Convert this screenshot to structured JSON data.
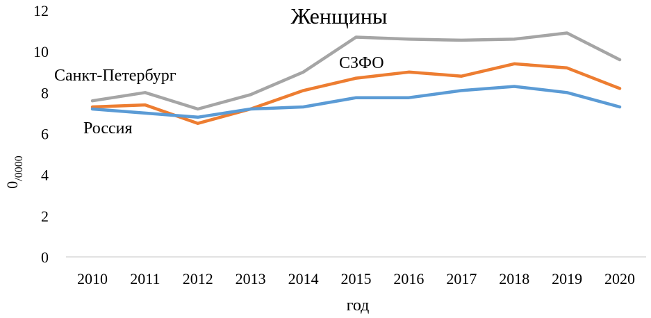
{
  "chart_data": {
    "type": "line",
    "title": "Женщины",
    "xlabel": "год",
    "ylabel_base": "0",
    "ylabel_sub": "/0000",
    "ylim": [
      0,
      12
    ],
    "yticks": [
      0,
      2,
      4,
      6,
      8,
      10,
      12
    ],
    "grid": false,
    "categories": [
      "2010",
      "2011",
      "2012",
      "2013",
      "2014",
      "2015",
      "2016",
      "2017",
      "2018",
      "2019",
      "2020"
    ],
    "series": [
      {
        "name": "Санкт-Петербург",
        "color": "#a5a5a5",
        "values": [
          7.6,
          8.0,
          7.2,
          7.9,
          9.0,
          10.7,
          10.6,
          10.55,
          10.6,
          10.9,
          9.6
        ]
      },
      {
        "name": "СЗФО",
        "color": "#ed7d31",
        "values": [
          7.3,
          7.4,
          6.5,
          7.2,
          8.1,
          8.7,
          9.0,
          8.8,
          9.4,
          9.2,
          8.2
        ]
      },
      {
        "name": "Россия",
        "color": "#5b9bd5",
        "values": [
          7.2,
          7.0,
          6.8,
          7.2,
          7.3,
          7.75,
          7.75,
          8.1,
          8.3,
          8.0,
          7.3
        ]
      }
    ]
  }
}
